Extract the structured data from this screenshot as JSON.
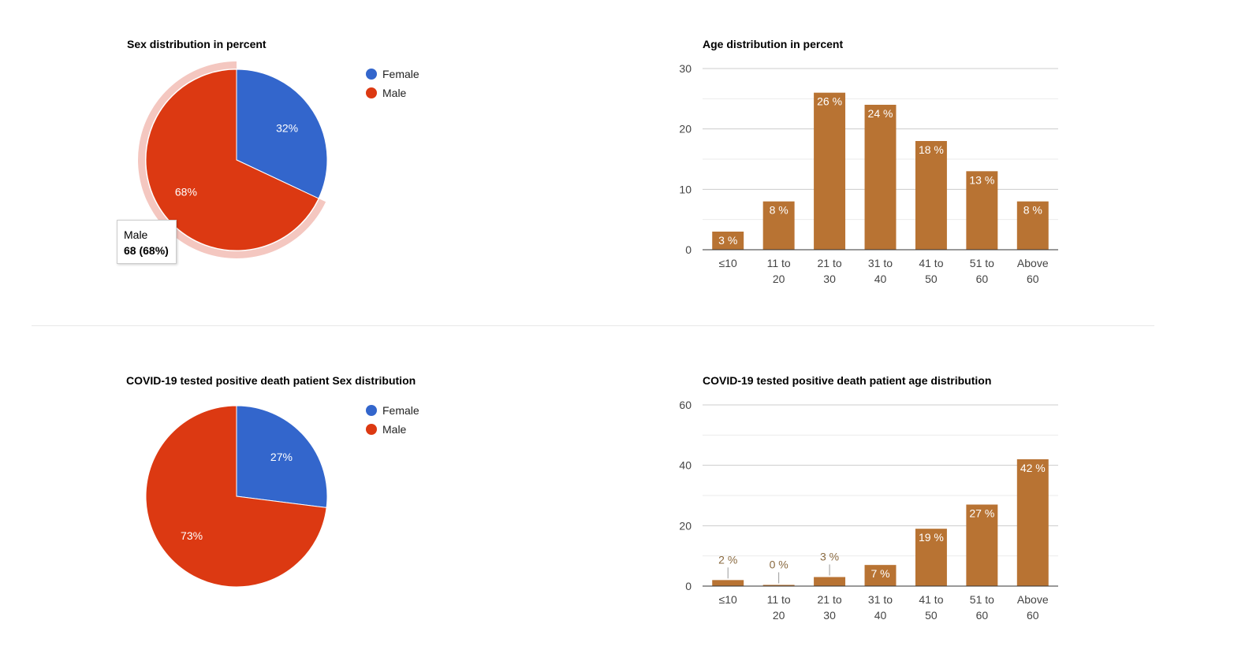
{
  "colors": {
    "female": "#3366cc",
    "male": "#dc3912",
    "bar": "#b87333",
    "highlight": "#f4c7c0",
    "grid": "#cccccc",
    "axis": "#333333",
    "label": "#444444"
  },
  "legend": {
    "female": "Female",
    "male": "Male"
  },
  "tooltip": {
    "label": "Male",
    "value": "68 (68%)"
  },
  "chart_data": [
    {
      "type": "pie",
      "title": "Sex distribution in percent",
      "slices": [
        {
          "name": "Female",
          "value": 32,
          "label": "32%"
        },
        {
          "name": "Male",
          "value": 68,
          "label": "68%"
        }
      ],
      "legend_position": "right",
      "highlighted": "Male"
    },
    {
      "type": "bar",
      "title": "Age distribution in percent",
      "categories": [
        "≤10",
        "11 to 20",
        "21 to 30",
        "31 to 40",
        "41 to 50",
        "51 to 60",
        "Above 60"
      ],
      "values": [
        3,
        8,
        26,
        24,
        18,
        13,
        8
      ],
      "data_labels": [
        "3 %",
        "8 %",
        "26 %",
        "24 %",
        "18 %",
        "13 %",
        "8 %"
      ],
      "yticks": [
        "0",
        "10",
        "20",
        "30"
      ],
      "ylim": [
        0,
        30
      ],
      "grid": true
    },
    {
      "type": "pie",
      "title": "COVID-19 tested positive death patient Sex distribution",
      "slices": [
        {
          "name": "Female",
          "value": 27,
          "label": "27%"
        },
        {
          "name": "Male",
          "value": 73,
          "label": "73%"
        }
      ],
      "legend_position": "right"
    },
    {
      "type": "bar",
      "title": "COVID-19 tested positive death patient age distribution",
      "categories": [
        "≤10",
        "11 to 20",
        "21 to 30",
        "31 to 40",
        "41 to 50",
        "51 to 60",
        "Above 60"
      ],
      "values": [
        2,
        0.4,
        3,
        7,
        19,
        27,
        42
      ],
      "data_labels": [
        "2 %",
        "0 %",
        "3 %",
        "7 %",
        "19 %",
        "27 %",
        "42 %"
      ],
      "yticks": [
        "0",
        "20",
        "40",
        "60"
      ],
      "ylim": [
        0,
        60
      ],
      "grid": true
    }
  ]
}
